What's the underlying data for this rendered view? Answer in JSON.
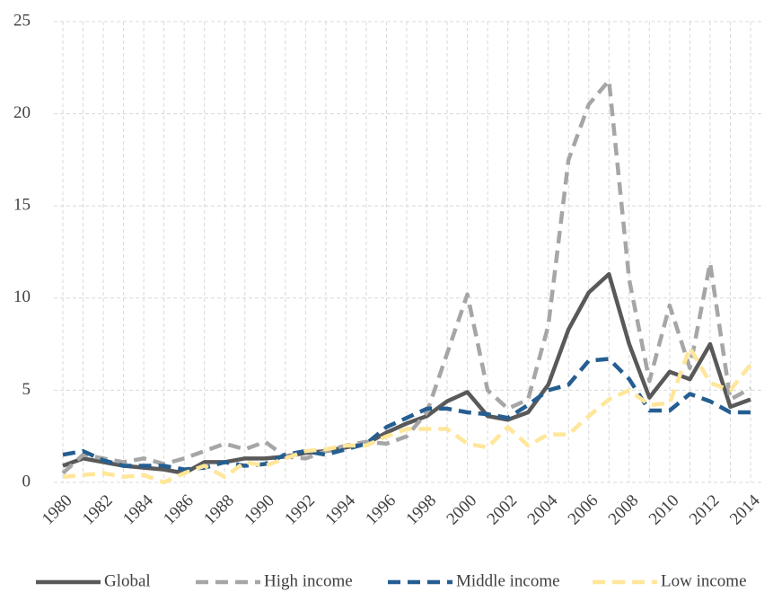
{
  "chart_data": {
    "type": "line",
    "x": [
      1980,
      1981,
      1982,
      1983,
      1984,
      1985,
      1986,
      1987,
      1988,
      1989,
      1990,
      1991,
      1992,
      1993,
      1994,
      1995,
      1996,
      1997,
      1998,
      1999,
      2000,
      2001,
      2002,
      2003,
      2004,
      2005,
      2006,
      2007,
      2008,
      2009,
      2010,
      2011,
      2012,
      2013,
      2014
    ],
    "xlim": [
      1980,
      2014
    ],
    "xticks": [
      1980,
      1982,
      1984,
      1986,
      1988,
      1990,
      1992,
      1994,
      1996,
      1998,
      2000,
      2002,
      2004,
      2006,
      2008,
      2010,
      2012,
      2014
    ],
    "ylim": [
      0,
      25
    ],
    "yticks": [
      0,
      5,
      10,
      15,
      20,
      25
    ],
    "grid": true,
    "legend": "bottom",
    "series": [
      {
        "name": "Global",
        "color": "#595959",
        "dash": "solid",
        "values": [
          0.9,
          1.3,
          1.1,
          0.9,
          0.8,
          0.7,
          0.5,
          1.1,
          1.1,
          1.3,
          1.3,
          1.4,
          1.6,
          1.7,
          1.9,
          2.1,
          2.7,
          3.2,
          3.6,
          4.4,
          4.9,
          3.6,
          3.4,
          3.8,
          5.3,
          8.3,
          10.3,
          11.3,
          7.5,
          4.6,
          6.0,
          5.6,
          7.5,
          4.1,
          4.5
        ]
      },
      {
        "name": "High income",
        "color": "#a6a6a6",
        "dash": "dashed",
        "values": [
          0.5,
          1.5,
          1.3,
          1.1,
          1.3,
          1.0,
          1.3,
          1.7,
          2.1,
          1.8,
          2.2,
          1.4,
          1.3,
          1.7,
          2.0,
          2.2,
          2.1,
          2.5,
          3.8,
          7.0,
          10.2,
          5.0,
          4.0,
          4.5,
          8.5,
          17.5,
          20.5,
          21.8,
          11.0,
          5.5,
          9.6,
          6.2,
          11.9,
          4.5,
          5.1
        ]
      },
      {
        "name": "Middle income",
        "color": "#255e91",
        "dash": "dashed",
        "values": [
          1.5,
          1.7,
          1.2,
          0.9,
          0.9,
          0.9,
          0.7,
          0.8,
          1.1,
          0.9,
          1.0,
          1.5,
          1.7,
          1.5,
          1.8,
          2.1,
          3.0,
          3.5,
          4.0,
          4.0,
          3.8,
          3.7,
          3.5,
          4.2,
          5.0,
          5.3,
          6.6,
          6.7,
          5.6,
          3.9,
          3.9,
          4.8,
          4.4,
          3.8,
          3.8
        ]
      },
      {
        "name": "Low income",
        "color": "#ffe699",
        "dash": "dashed",
        "values": [
          0.3,
          0.4,
          0.5,
          0.3,
          0.4,
          0,
          0.5,
          0.9,
          0.3,
          1.1,
          0.9,
          1.3,
          1.7,
          1.8,
          2.0,
          2.0,
          2.5,
          2.9,
          2.9,
          2.9,
          2.1,
          1.9,
          3.0,
          2.0,
          2.6,
          2.6,
          3.6,
          4.5,
          5.0,
          4.2,
          4.3,
          7.3,
          5.4,
          5.0,
          6.4
        ]
      }
    ]
  }
}
